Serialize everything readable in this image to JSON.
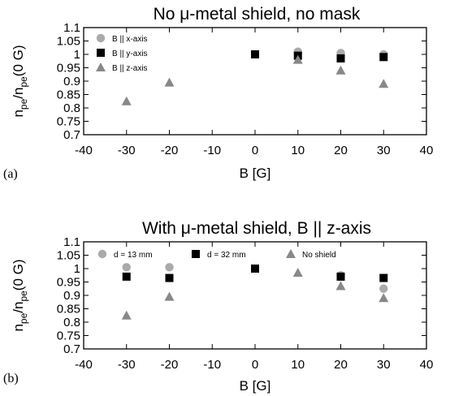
{
  "chart_data": [
    {
      "type": "scatter",
      "panel_label": "(a)",
      "title": "No μ-metal shield, no mask",
      "xlabel": "B [G]",
      "ylabel": "n_pe/n_pe(0 G)",
      "ylabel_parts": {
        "main": "n",
        "sub1": "pe",
        "slash": "/n",
        "sub2": "pe",
        "tail": "(0 G)"
      },
      "xlim": [
        -40,
        40
      ],
      "ylim": [
        0.7,
        1.1
      ],
      "x_ticks": [
        "-40",
        "-30",
        "-20",
        "-10",
        "0",
        "10",
        "20",
        "30",
        "40"
      ],
      "y_ticks": [
        "0.7",
        "0.75",
        "0.8",
        "0.85",
        "0.9",
        "0.95",
        "1",
        "1.05",
        "1.1"
      ],
      "grid": false,
      "legend_position": "top-left",
      "series": [
        {
          "name": "B || x-axis",
          "marker": "circle",
          "color": "#aaaaaa",
          "x": [
            0,
            10,
            20,
            30
          ],
          "y": [
            1.0,
            1.01,
            1.005,
            1.0
          ]
        },
        {
          "name": "B || y-axis",
          "marker": "square",
          "color": "#000000",
          "x": [
            0,
            10,
            20,
            30
          ],
          "y": [
            1.0,
            0.995,
            0.985,
            0.99
          ]
        },
        {
          "name": "B || z-axis",
          "marker": "triangle",
          "color": "#888888",
          "x": [
            -30,
            -20,
            10,
            20,
            30
          ],
          "y": [
            0.825,
            0.895,
            0.98,
            0.94,
            0.89
          ]
        }
      ]
    },
    {
      "type": "scatter",
      "panel_label": "(b)",
      "title": "With μ-metal shield, B || z-axis",
      "xlabel": "B [G]",
      "ylabel": "n_pe/n_pe(0 G)",
      "ylabel_parts": {
        "main": "n",
        "sub1": "pe",
        "slash": "/n",
        "sub2": "pe",
        "tail": "(0 G)"
      },
      "xlim": [
        -40,
        40
      ],
      "ylim": [
        0.7,
        1.1
      ],
      "x_ticks": [
        "-40",
        "-30",
        "-20",
        "-10",
        "0",
        "10",
        "20",
        "30",
        "40"
      ],
      "y_ticks": [
        "0.7",
        "0.75",
        "0.8",
        "0.85",
        "0.9",
        "0.95",
        "1",
        "1.05",
        "1.1"
      ],
      "grid": false,
      "legend_position": "top",
      "series": [
        {
          "name": "d = 13 mm",
          "marker": "circle",
          "color": "#aaaaaa",
          "x": [
            -30,
            -20,
            20,
            30
          ],
          "y": [
            1.005,
            1.005,
            0.975,
            0.925
          ]
        },
        {
          "name": "d = 32 mm",
          "marker": "square",
          "color": "#000000",
          "x": [
            -30,
            -20,
            0,
            20,
            30
          ],
          "y": [
            0.97,
            0.965,
            1.0,
            0.97,
            0.965
          ]
        },
        {
          "name": "No shield",
          "marker": "triangle",
          "color": "#888888",
          "x": [
            -30,
            -20,
            10,
            20,
            30
          ],
          "y": [
            0.825,
            0.895,
            0.985,
            0.935,
            0.89
          ]
        }
      ]
    }
  ]
}
